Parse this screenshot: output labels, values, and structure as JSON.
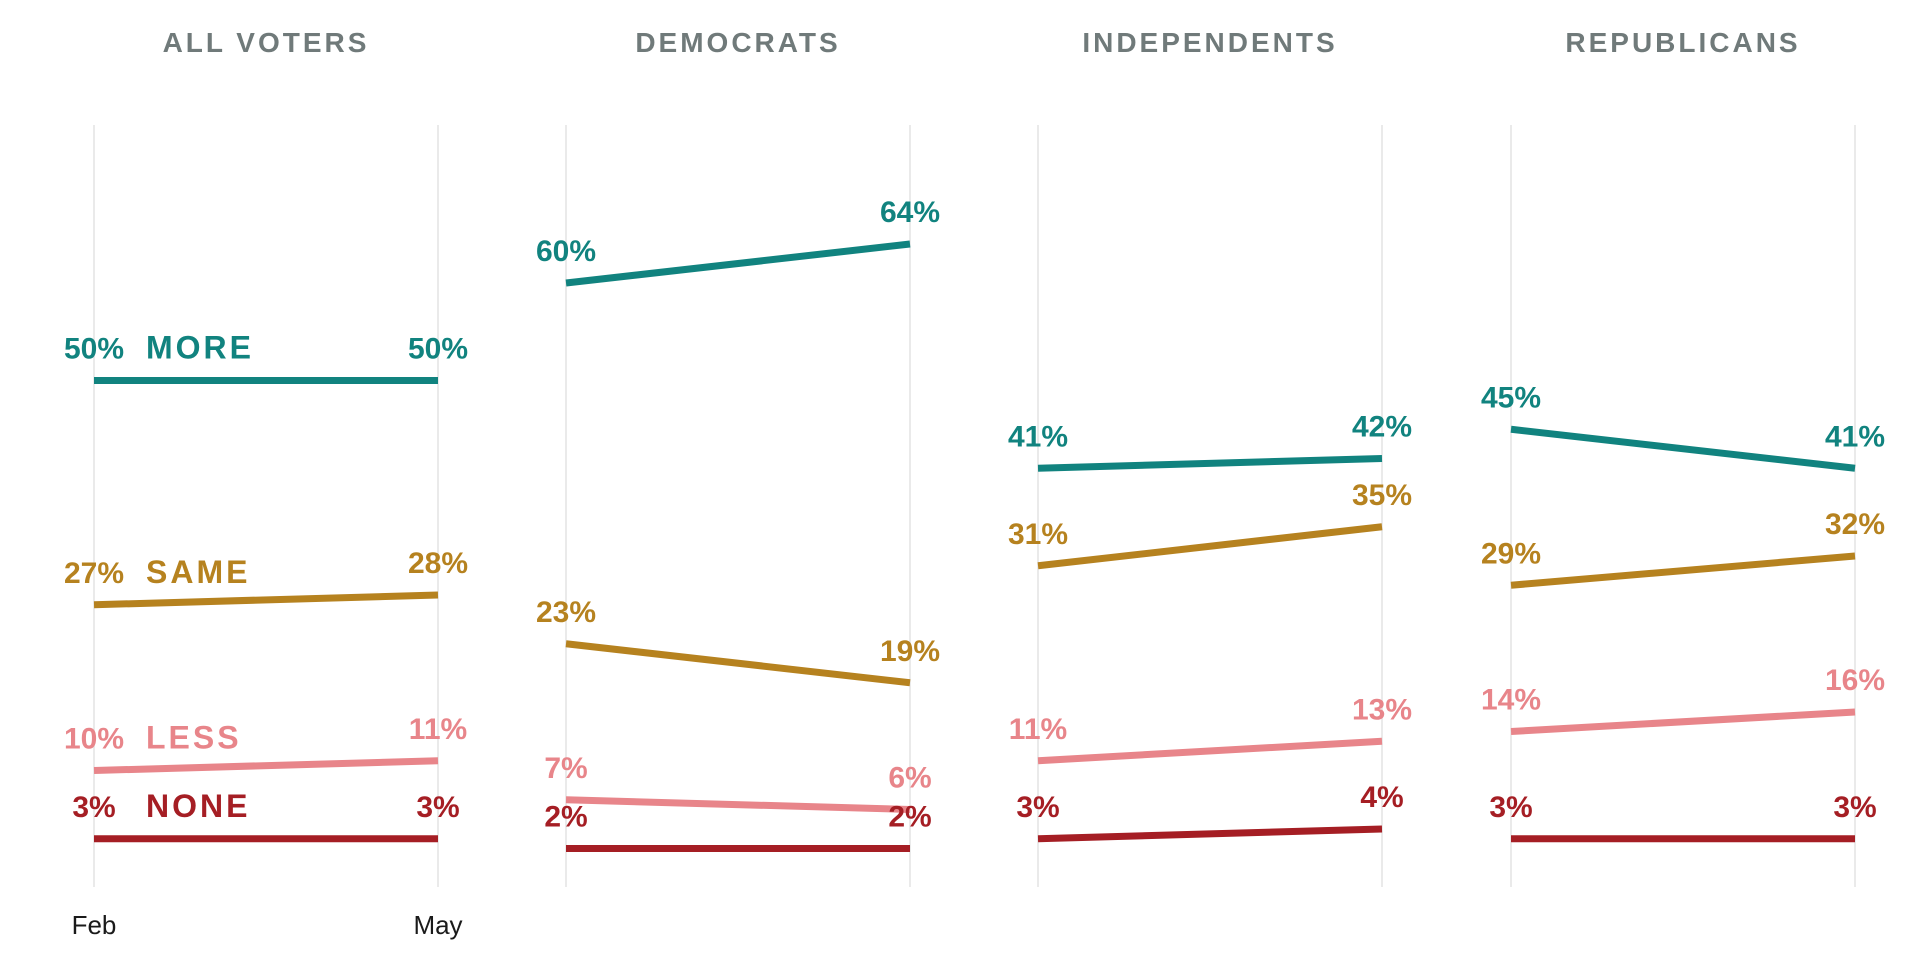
{
  "colors": {
    "more": "#11837f",
    "same": "#b6821f",
    "less": "#e8858a",
    "none": "#a51e24",
    "title": "#707a7a",
    "grid": "#e4e4e4"
  },
  "chart_data": {
    "type": "line",
    "x_ticks": [
      "Feb",
      "May"
    ],
    "ylim": [
      0,
      80
    ],
    "series_labels": {
      "more": "MORE",
      "same": "SAME",
      "less": "LESS",
      "none": "NONE"
    },
    "panels": [
      {
        "title": "ALL VOTERS",
        "series": [
          {
            "key": "more",
            "values": [
              50,
              50
            ],
            "labels": [
              "50%",
              "50%"
            ]
          },
          {
            "key": "same",
            "values": [
              27,
              28
            ],
            "labels": [
              "27%",
              "28%"
            ]
          },
          {
            "key": "less",
            "values": [
              10,
              11
            ],
            "labels": [
              "10%",
              "11%"
            ]
          },
          {
            "key": "none",
            "values": [
              3,
              3
            ],
            "labels": [
              "3%",
              "3%"
            ]
          }
        ]
      },
      {
        "title": "DEMOCRATS",
        "series": [
          {
            "key": "more",
            "values": [
              60,
              64
            ],
            "labels": [
              "60%",
              "64%"
            ]
          },
          {
            "key": "same",
            "values": [
              23,
              19
            ],
            "labels": [
              "23%",
              "19%"
            ]
          },
          {
            "key": "less",
            "values": [
              7,
              6
            ],
            "labels": [
              "7%",
              "6%"
            ]
          },
          {
            "key": "none",
            "values": [
              2,
              2
            ],
            "labels": [
              "2%",
              "2%"
            ]
          }
        ]
      },
      {
        "title": "INDEPENDENTS",
        "series": [
          {
            "key": "more",
            "values": [
              41,
              42
            ],
            "labels": [
              "41%",
              "42%"
            ]
          },
          {
            "key": "same",
            "values": [
              31,
              35
            ],
            "labels": [
              "31%",
              "35%"
            ]
          },
          {
            "key": "less",
            "values": [
              11,
              13
            ],
            "labels": [
              "11%",
              "13%"
            ]
          },
          {
            "key": "none",
            "values": [
              3,
              4
            ],
            "labels": [
              "3%",
              "4%"
            ]
          }
        ]
      },
      {
        "title": "REPUBLICANS",
        "series": [
          {
            "key": "more",
            "values": [
              45,
              41
            ],
            "labels": [
              "45%",
              "41%"
            ]
          },
          {
            "key": "same",
            "values": [
              29,
              32
            ],
            "labels": [
              "29%",
              "32%"
            ]
          },
          {
            "key": "less",
            "values": [
              14,
              16
            ],
            "labels": [
              "14%",
              "16%"
            ]
          },
          {
            "key": "none",
            "values": [
              3,
              3
            ],
            "labels": [
              "3%",
              "3%"
            ]
          }
        ]
      }
    ]
  }
}
